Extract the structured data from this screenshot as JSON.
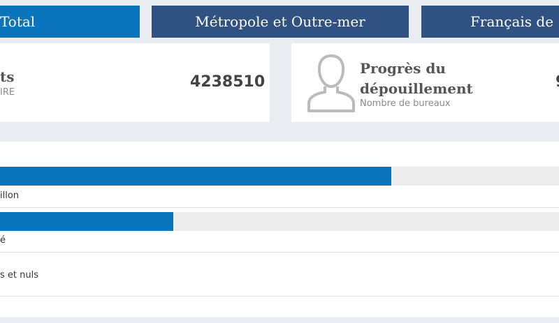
{
  "tabs": [
    "Total",
    "Métropole et Outre-mer",
    "Français de"
  ],
  "cards": [
    {
      "title": "ts",
      "subtitle": "IRE",
      "value": "4238510"
    },
    {
      "title_line1": "Progrès du",
      "title_line2": "dépouillement",
      "subtitle": "Nombre de bureaux",
      "value": "9"
    }
  ],
  "bars": [
    {
      "label": "illon",
      "value": 70
    },
    {
      "label": "é",
      "value": 31
    },
    {
      "label": "s et nuls"
    }
  ]
}
